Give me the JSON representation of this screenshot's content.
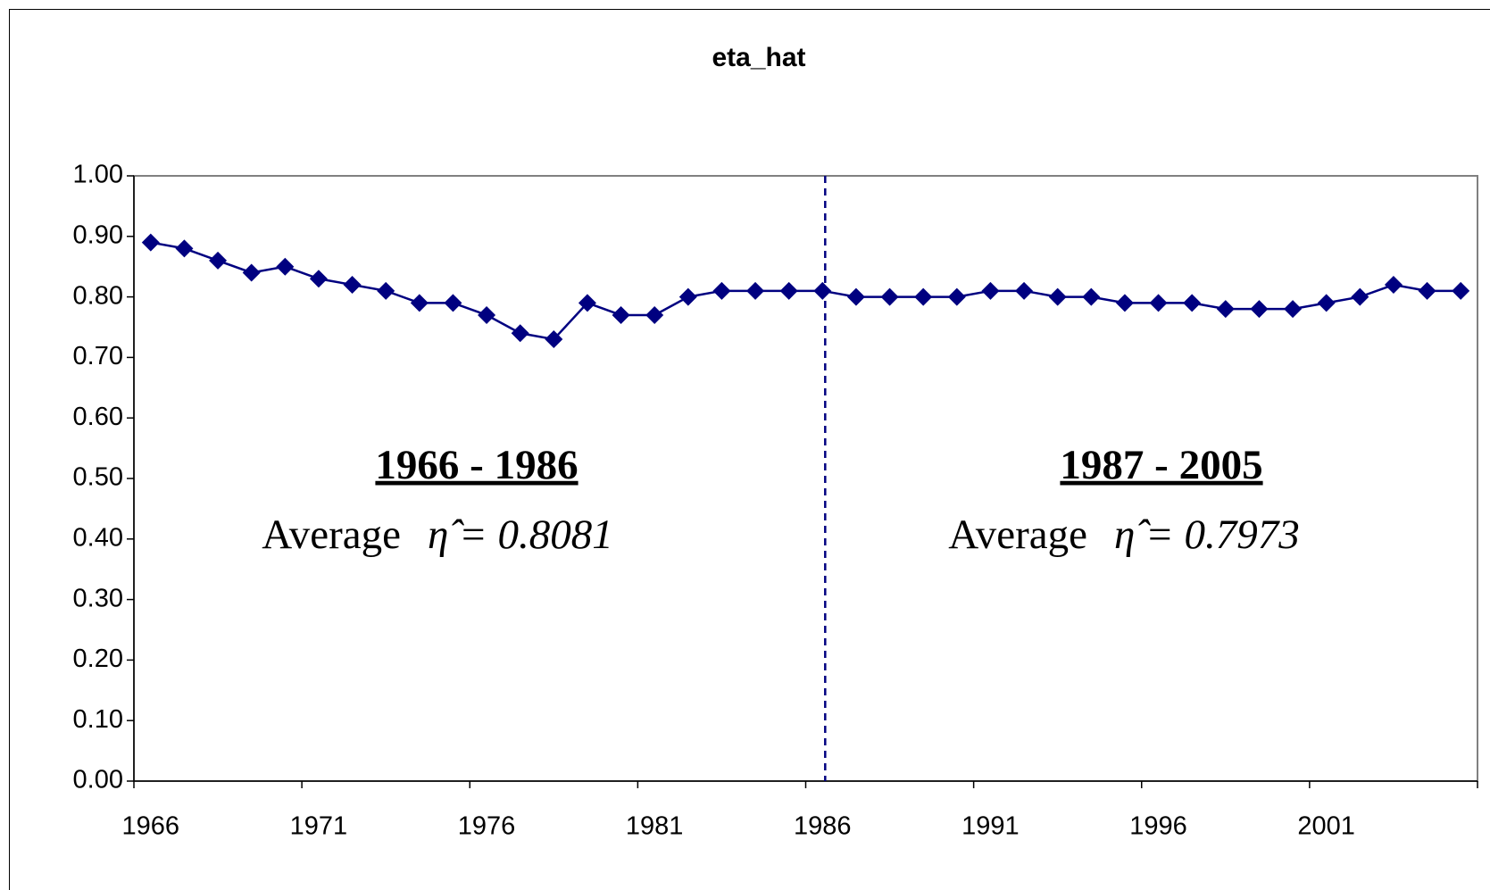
{
  "chart_data": {
    "type": "line",
    "title": "eta_hat",
    "categories": [
      "1966",
      null,
      null,
      null,
      null,
      "1971",
      null,
      null,
      null,
      null,
      "1976",
      null,
      null,
      null,
      null,
      "1981",
      null,
      null,
      null,
      null,
      "1986",
      null,
      null,
      null,
      null,
      "1991",
      null,
      null,
      null,
      null,
      "1996",
      null,
      null,
      null,
      null,
      "2001",
      null,
      null,
      null,
      null
    ],
    "series": [
      {
        "name": "eta_hat",
        "color": "#000080",
        "values": [
          0.89,
          0.88,
          0.86,
          0.84,
          0.85,
          0.83,
          0.82,
          0.81,
          0.79,
          0.79,
          0.77,
          0.74,
          0.73,
          0.79,
          0.77,
          0.77,
          0.8,
          0.81,
          0.81,
          0.81,
          0.81,
          0.8,
          0.8,
          0.8,
          0.8,
          0.81,
          0.81,
          0.8,
          0.8,
          0.79,
          0.79,
          0.79,
          0.78,
          0.78,
          0.78,
          0.79,
          0.8,
          0.82,
          0.81,
          0.81
        ]
      }
    ],
    "ylim": [
      0,
      1
    ],
    "yticks": [
      {
        "value": 0,
        "label": "0.00"
      },
      {
        "value": 0.1,
        "label": "0.10"
      },
      {
        "value": 0.2,
        "label": "0.20"
      },
      {
        "value": 0.3,
        "label": "0.30"
      },
      {
        "value": 0.4,
        "label": "0.40"
      },
      {
        "value": 0.5,
        "label": "0.50"
      },
      {
        "value": 0.6,
        "label": "0.60"
      },
      {
        "value": 0.7,
        "label": "0.70"
      },
      {
        "value": 0.8,
        "label": "0.80"
      },
      {
        "value": 0.9,
        "label": "0.90"
      },
      {
        "value": 1,
        "label": "1.00"
      }
    ],
    "divider_at": "1986",
    "annotations": [
      {
        "title": "1966 - 1986",
        "text": "Average",
        "formula": "η̂ = 0.8081"
      },
      {
        "title": "1987 - 2005",
        "text": "Average",
        "formula": "η̂ = 0.7973"
      }
    ]
  }
}
